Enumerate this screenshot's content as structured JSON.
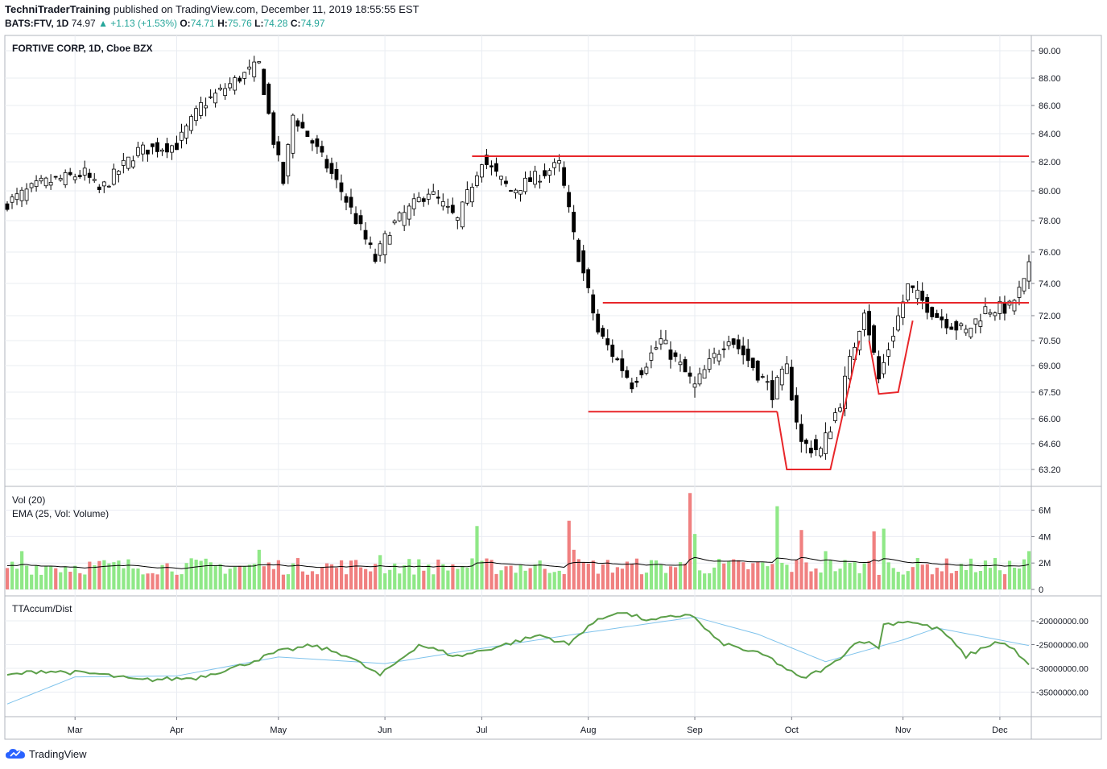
{
  "header": {
    "publisher": "TechniTraderTraining",
    "published_text": "published on TradingView.com, December 11, 2019 18:55:55 EST",
    "symbol": "BATS:FTV, 1D",
    "last": "74.97",
    "change": "▲ +1.13 (+1.53%)",
    "o_label": "O:",
    "o_value": "74.71",
    "h_label": "H:",
    "h_value": "75.76",
    "l_label": "L:",
    "l_value": "74.28",
    "c_label": "C:",
    "c_value": "74.97"
  },
  "footer": {
    "brand": "TradingView"
  },
  "colors": {
    "up_volume": "#8fe887",
    "down_volume": "#f08080",
    "ema_line": "#000000",
    "accum_line": "#5b9f48",
    "accum_ma": "#7fc3ec",
    "annotation": "#e8262a",
    "grid": "#e9ecf2"
  },
  "chart_data": [
    {
      "type": "candlestick",
      "title": "FORTIVE CORP, 1D, Cboe BZX",
      "ylabels": [
        "90.00",
        "88.00",
        "86.00",
        "84.00",
        "82.00",
        "80.00",
        "78.00",
        "76.00",
        "74.00",
        "72.00",
        "70.50",
        "69.00",
        "67.50",
        "66.00",
        "64.60",
        "63.20"
      ],
      "ylim": [
        63.2,
        90
      ],
      "xlabels": [
        "Mar",
        "Apr",
        "May",
        "Jun",
        "Jul",
        "Aug",
        "Sep",
        "Oct",
        "Nov",
        "Dec"
      ],
      "x_range": [
        "2019-02-08",
        "2019-12-10"
      ],
      "anchors": [
        [
          "2019-02-08",
          79.2
        ],
        [
          "2019-02-20",
          80.5
        ],
        [
          "2019-03-05",
          81.2
        ],
        [
          "2019-03-08",
          80.0
        ],
        [
          "2019-03-20",
          82.8
        ],
        [
          "2019-04-01",
          83.2
        ],
        [
          "2019-04-08",
          86.0
        ],
        [
          "2019-04-17",
          87.8
        ],
        [
          "2019-04-25",
          89.0
        ],
        [
          "2019-04-30",
          83.5
        ],
        [
          "2019-05-02",
          80.6
        ],
        [
          "2019-05-06",
          85.3
        ],
        [
          "2019-05-10",
          83.4
        ],
        [
          "2019-05-20",
          80.0
        ],
        [
          "2019-05-30",
          75.5
        ],
        [
          "2019-06-04",
          77.5
        ],
        [
          "2019-06-14",
          80.0
        ],
        [
          "2019-06-24",
          78.0
        ],
        [
          "2019-07-01",
          82.2
        ],
        [
          "2019-07-10",
          80.0
        ],
        [
          "2019-07-24",
          81.8
        ],
        [
          "2019-07-29",
          77.0
        ],
        [
          "2019-08-05",
          71.0
        ],
        [
          "2019-08-14",
          68.0
        ],
        [
          "2019-08-22",
          70.5
        ],
        [
          "2019-09-03",
          67.8
        ],
        [
          "2019-09-12",
          70.8
        ],
        [
          "2019-09-25",
          67.5
        ],
        [
          "2019-09-30",
          68.8
        ],
        [
          "2019-10-03",
          64.6
        ],
        [
          "2019-10-09",
          64.2
        ],
        [
          "2019-10-15",
          67.0
        ],
        [
          "2019-10-22",
          72.5
        ],
        [
          "2019-10-25",
          68.2
        ],
        [
          "2019-10-30",
          71.0
        ],
        [
          "2019-11-04",
          73.8
        ],
        [
          "2019-11-12",
          72.0
        ],
        [
          "2019-11-20",
          71.0
        ],
        [
          "2019-11-26",
          72.4
        ],
        [
          "2019-12-04",
          72.5
        ],
        [
          "2019-12-09",
          74.0
        ],
        [
          "2019-12-10",
          74.97
        ]
      ],
      "annotations": [
        {
          "type": "resistance",
          "from": "2019-06-27",
          "to": "2019-12-10",
          "y": 82.4
        },
        {
          "type": "resistance",
          "from": "2019-08-06",
          "to": "2019-12-10",
          "y": 72.8
        },
        {
          "type": "support",
          "from": "2019-08-01",
          "to": "2019-09-26",
          "y": 66.4
        },
        {
          "type": "cup",
          "points": [
            [
              "2019-09-26",
              66.4
            ],
            [
              "2019-09-30",
              63.2
            ],
            [
              "2019-10-11",
              63.2
            ],
            [
              "2019-10-21",
              70.5
            ]
          ]
        },
        {
          "type": "handle",
          "points": [
            [
              "2019-10-23",
              70.5
            ],
            [
              "2019-10-25",
              67.4
            ],
            [
              "2019-10-31",
              67.5
            ],
            [
              "2019-11-05",
              71.7
            ]
          ]
        }
      ]
    },
    {
      "type": "bar",
      "title": "Vol (20)",
      "subtitle": "EMA (25, Vol: Volume)",
      "ylabels": [
        "6M",
        "4M",
        "2M",
        "0"
      ],
      "ylim": [
        0,
        7.4
      ],
      "unit": "M",
      "ema_level_typical": 1.8,
      "spikes": [
        [
          "2019-02-13",
          2.9
        ],
        [
          "2019-04-25",
          3.0
        ],
        [
          "2019-05-31",
          2.6
        ],
        [
          "2019-06-28",
          4.8
        ],
        [
          "2019-07-26",
          5.2
        ],
        [
          "2019-07-29",
          3.0
        ],
        [
          "2019-08-30",
          7.3
        ],
        [
          "2019-09-03",
          4.2
        ],
        [
          "2019-09-26",
          6.3
        ],
        [
          "2019-10-03",
          4.5
        ],
        [
          "2019-10-10",
          2.9
        ],
        [
          "2019-10-24",
          4.4
        ],
        [
          "2019-10-28",
          4.6
        ],
        [
          "2019-12-10",
          2.9
        ]
      ]
    },
    {
      "type": "line",
      "title": "TTAccum/Dist",
      "ylabels": [
        "-20000000.00",
        "-25000000.00",
        "-30000000.00",
        "-35000000.00"
      ],
      "ylim": [
        -37800000,
        -16500000
      ],
      "anchors": [
        [
          "2019-02-08",
          -31500000
        ],
        [
          "2019-02-20",
          -30500000
        ],
        [
          "2019-03-08",
          -31200000
        ],
        [
          "2019-03-20",
          -32500000
        ],
        [
          "2019-04-05",
          -32000000
        ],
        [
          "2019-04-18",
          -29500000
        ],
        [
          "2019-05-01",
          -26500000
        ],
        [
          "2019-05-10",
          -25200000
        ],
        [
          "2019-05-21",
          -27200000
        ],
        [
          "2019-05-31",
          -31500000
        ],
        [
          "2019-06-12",
          -25000000
        ],
        [
          "2019-06-24",
          -27500000
        ],
        [
          "2019-07-05",
          -25500000
        ],
        [
          "2019-07-18",
          -23000000
        ],
        [
          "2019-07-26",
          -25000000
        ],
        [
          "2019-08-01",
          -21000000
        ],
        [
          "2019-08-09",
          -18000000
        ],
        [
          "2019-08-20",
          -20000000
        ],
        [
          "2019-08-30",
          -18500000
        ],
        [
          "2019-09-10",
          -24500000
        ],
        [
          "2019-09-24",
          -27500000
        ],
        [
          "2019-10-03",
          -32200000
        ],
        [
          "2019-10-11",
          -29500000
        ],
        [
          "2019-10-21",
          -24000000
        ],
        [
          "2019-10-25",
          -25500000
        ],
        [
          "2019-10-28",
          -20800000
        ],
        [
          "2019-11-04",
          -20000000
        ],
        [
          "2019-11-13",
          -22000000
        ],
        [
          "2019-11-20",
          -27500000
        ],
        [
          "2019-11-29",
          -24500000
        ],
        [
          "2019-12-04",
          -25200000
        ],
        [
          "2019-12-10",
          -29500000
        ]
      ],
      "ma_anchors": [
        [
          "2019-02-08",
          -37500000
        ],
        [
          "2019-03-01",
          -31800000
        ],
        [
          "2019-04-01",
          -31600000
        ],
        [
          "2019-05-01",
          -27600000
        ],
        [
          "2019-06-01",
          -29000000
        ],
        [
          "2019-07-01",
          -25800000
        ],
        [
          "2019-08-01",
          -22400000
        ],
        [
          "2019-09-01",
          -19200000
        ],
        [
          "2019-09-20",
          -22800000
        ],
        [
          "2019-10-10",
          -28600000
        ],
        [
          "2019-11-01",
          -24000000
        ],
        [
          "2019-11-12",
          -21500000
        ],
        [
          "2019-12-10",
          -25200000
        ]
      ]
    }
  ]
}
